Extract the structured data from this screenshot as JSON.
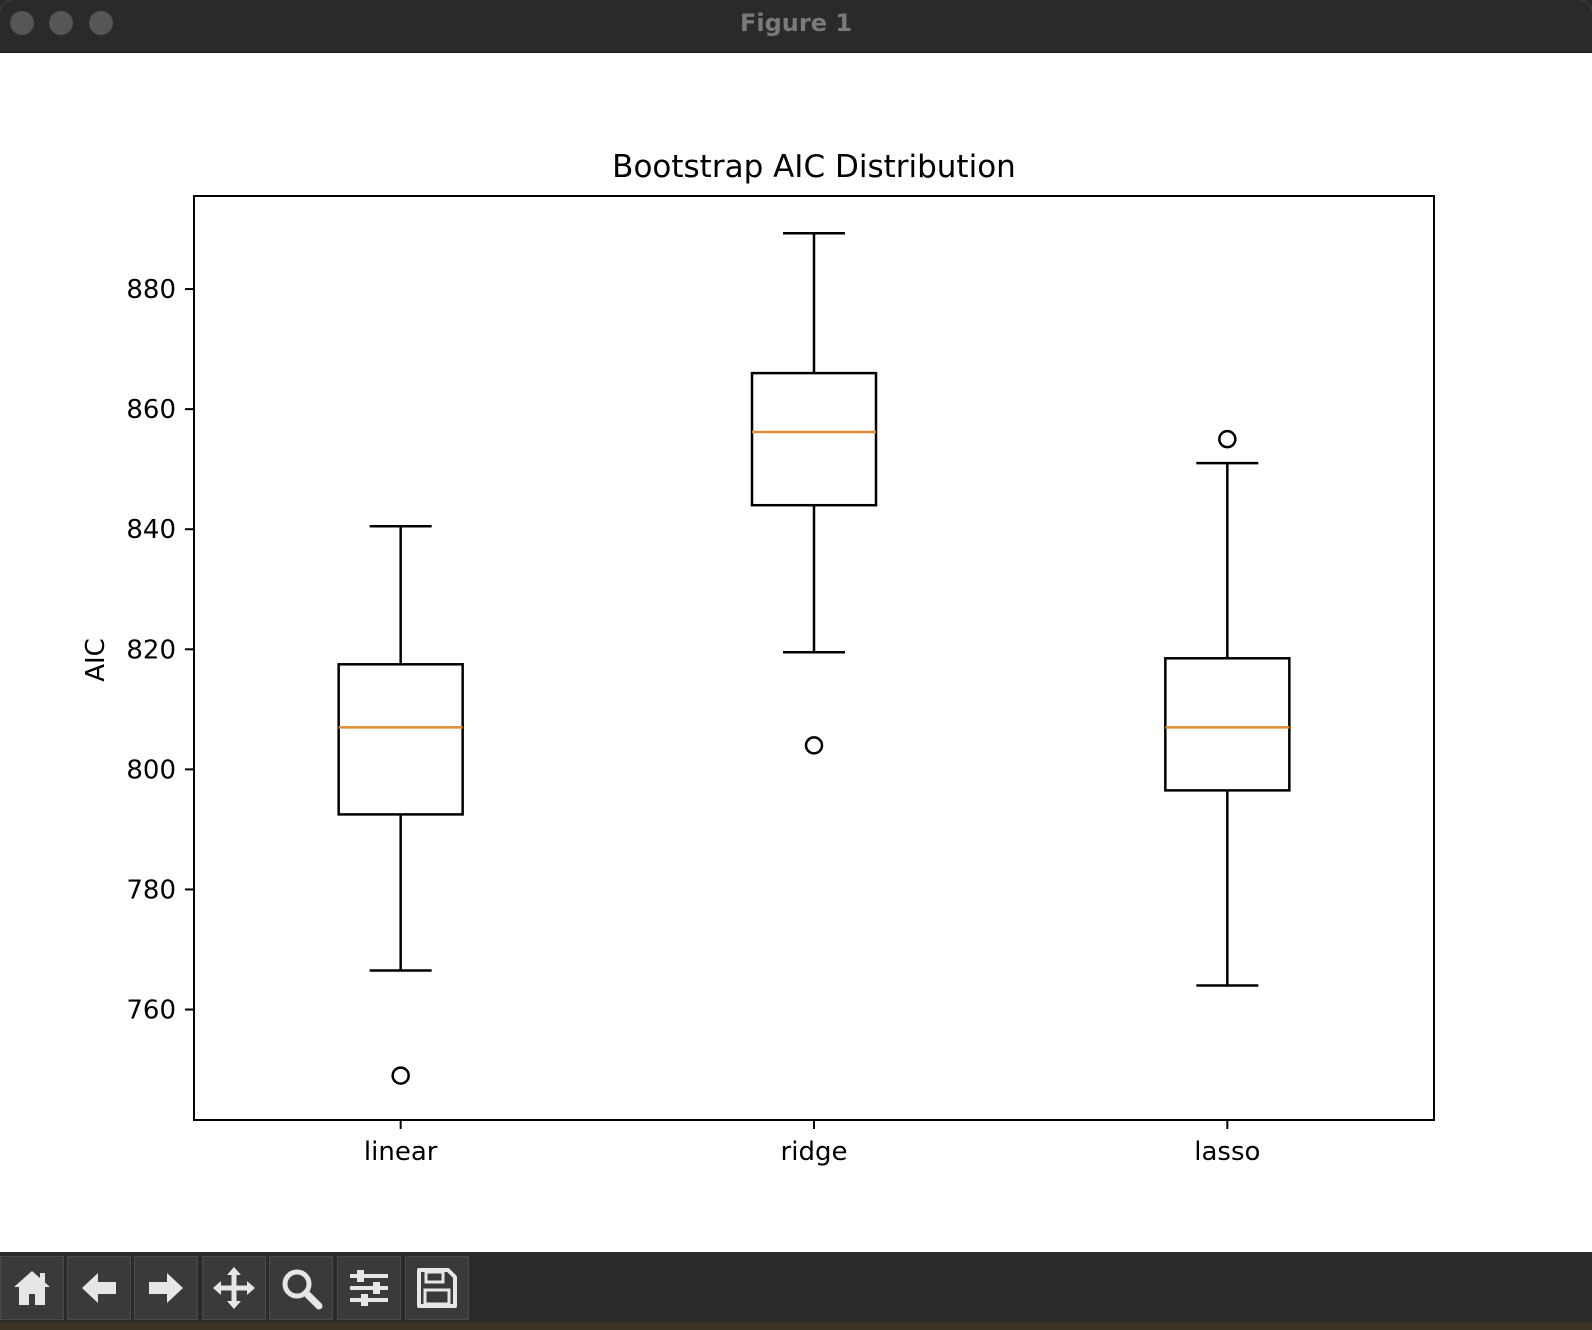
{
  "window": {
    "title": "Figure 1"
  },
  "toolbar": {
    "buttons": [
      {
        "name": "home-icon"
      },
      {
        "name": "back-arrow-icon"
      },
      {
        "name": "forward-arrow-icon"
      },
      {
        "name": "pan-icon"
      },
      {
        "name": "zoom-icon"
      },
      {
        "name": "configure-subplots-icon"
      },
      {
        "name": "save-icon"
      }
    ]
  },
  "chart_data": {
    "type": "box",
    "title": "Bootstrap AIC Distribution",
    "xlabel": "",
    "ylabel": "AIC",
    "categories": [
      "linear",
      "ridge",
      "lasso"
    ],
    "yticks": [
      760,
      780,
      800,
      820,
      840,
      860,
      880
    ],
    "ylim": [
      741.6,
      895.5
    ],
    "grid": false,
    "box_color": "#000000",
    "median_color": "#e08b2f",
    "boxes": [
      {
        "label": "linear",
        "whisker_low": 766.5,
        "q1": 792.5,
        "median": 807,
        "q3": 817.5,
        "whisker_high": 840.5,
        "outliers": [
          749
        ]
      },
      {
        "label": "ridge",
        "whisker_low": 819.5,
        "q1": 844,
        "median": 856.2,
        "q3": 866,
        "whisker_high": 889.3,
        "outliers": [
          804
        ]
      },
      {
        "label": "lasso",
        "whisker_low": 764,
        "q1": 796.5,
        "median": 807,
        "q3": 818.5,
        "whisker_high": 851,
        "outliers": [
          855
        ]
      }
    ]
  }
}
